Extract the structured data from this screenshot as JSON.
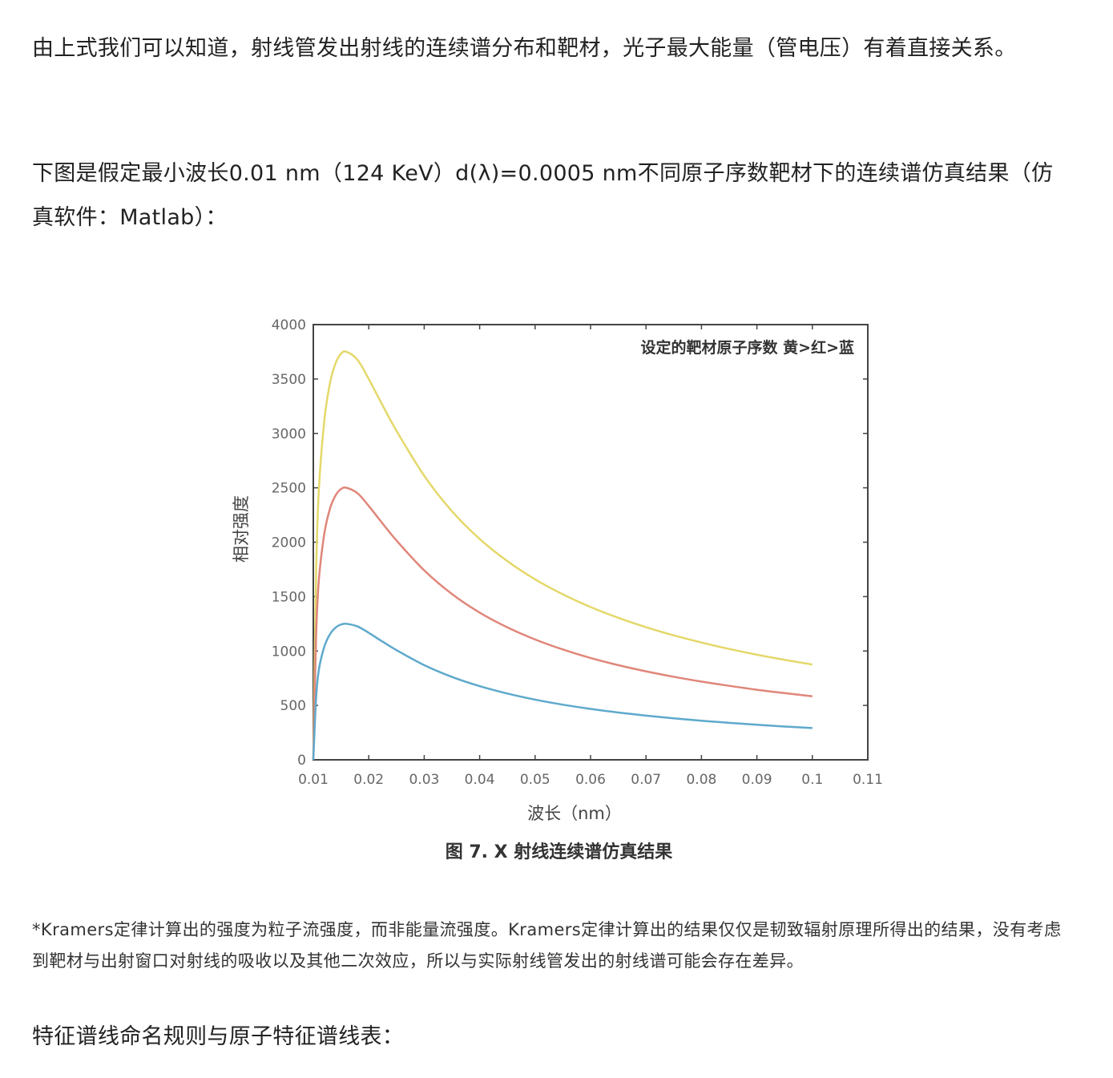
{
  "paragraphs": {
    "p1": "由上式我们可以知道，射线管发出射线的连续谱分布和靶材，光子最大能量（管电压）有着直接关系。",
    "p2": "下图是假定最小波长0.01 nm（124 KeV）d(λ)=0.0005 nm不同原子序数靶材下的连续谱仿真结果（仿真软件：Matlab）："
  },
  "figure": {
    "caption": "图 7. X 射线连续谱仿真结果"
  },
  "note": "*Kramers定律计算出的强度为粒子流强度，而非能量流强度。Kramers定律计算出的结果仅仅是韧致辐射原理所得出的结果，没有考虑到靶材与出射窗口对射线的吸收以及其他二次效应，所以与实际射线管发出的射线谱可能会存在差异。",
  "heading": "特征谱线命名规则与原子特征谱线表：",
  "chart_data": {
    "type": "line",
    "title": "",
    "annotation": "设定的靶材原子序数 黄>红>蓝",
    "xlabel": "波长（nm）",
    "ylabel": "相对强度",
    "xlim": [
      0.01,
      0.11
    ],
    "ylim": [
      0,
      4000
    ],
    "xticks": [
      "0.01",
      "0.02",
      "0.03",
      "0.04",
      "0.05",
      "0.06",
      "0.07",
      "0.08",
      "0.09",
      "0.1",
      "0.11"
    ],
    "yticks": [
      "0",
      "500",
      "1000",
      "1500",
      "2000",
      "2500",
      "3000",
      "3500",
      "4000"
    ],
    "grid": false,
    "x": [
      0.01,
      0.0105,
      0.011,
      0.012,
      0.013,
      0.014,
      0.015,
      0.016,
      0.018,
      0.02,
      0.022,
      0.025,
      0.03,
      0.035,
      0.04,
      0.045,
      0.05,
      0.055,
      0.06,
      0.065,
      0.07,
      0.075,
      0.08,
      0.085,
      0.09,
      0.095,
      0.1
    ],
    "series": [
      {
        "color": "#e4d86a",
        "values": [
          0,
          1700,
          2480,
          3125,
          3461,
          3643,
          3733,
          3750,
          3674,
          3500,
          3306,
          3024,
          2611,
          2285,
          2030,
          1826,
          1659,
          1521,
          1404,
          1305,
          1219,
          1144,
          1078,
          1019,
          966,
          919,
          876
        ]
      },
      {
        "color": "#e0867a",
        "values": [
          0,
          1133,
          1653,
          2083,
          2307,
          2429,
          2489,
          2500,
          2449,
          2333,
          2204,
          2016,
          1741,
          1524,
          1353,
          1217,
          1106,
          1014,
          936,
          870,
          813,
          763,
          719,
          680,
          644,
          613,
          584
        ]
      },
      {
        "color": "#5ea9cc",
        "values": [
          0,
          567,
          827,
          1042,
          1154,
          1214,
          1244,
          1250,
          1225,
          1167,
          1102,
          1008,
          870,
          762,
          677,
          609,
          553,
          507,
          468,
          435,
          406,
          381,
          359,
          340,
          322,
          306,
          292
        ]
      }
    ]
  }
}
